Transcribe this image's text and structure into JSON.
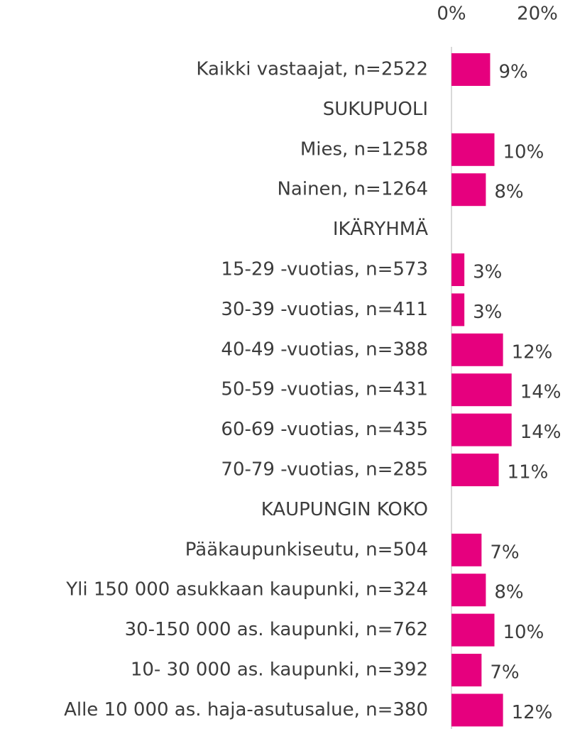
{
  "chart_data": {
    "type": "hbar",
    "categories": [
      "Kaikki vastaajat, n=2522",
      "SUKUPUOLI",
      "Mies, n=1258",
      "Nainen, n=1264",
      "IKÄRYHMÄ",
      "15-29 -vuotias, n=573",
      "30-39 -vuotias, n=411",
      "40-49 -vuotias, n=388",
      "50-59 -vuotias, n=431",
      "60-69 -vuotias, n=435",
      "70-79 -vuotias, n=285",
      "KAUPUNGIN KOKO",
      "Pääkaupunkiseutu, n=504",
      "Yli 150 000 asukkaan kaupunki, n=324",
      "30-150 000 as. kaupunki, n=762",
      "10- 30 000 as. kaupunki, n=392",
      "Alle 10 000 as. haja-asutusalue, n=380"
    ],
    "values": [
      9,
      null,
      10,
      8,
      null,
      3,
      3,
      12,
      14,
      14,
      11,
      null,
      7,
      8,
      10,
      7,
      12
    ],
    "value_labels": [
      "9%",
      null,
      "10%",
      "8%",
      null,
      "3%",
      "3%",
      "12%",
      "14%",
      "14%",
      "11%",
      null,
      "7%",
      "8%",
      "10%",
      "7%",
      "12%"
    ],
    "color": "#e6007e",
    "xlim": [
      0,
      28
    ],
    "xticks": [
      {
        "value": 0,
        "label": "0%"
      },
      {
        "value": 20,
        "label": "20%"
      }
    ]
  }
}
